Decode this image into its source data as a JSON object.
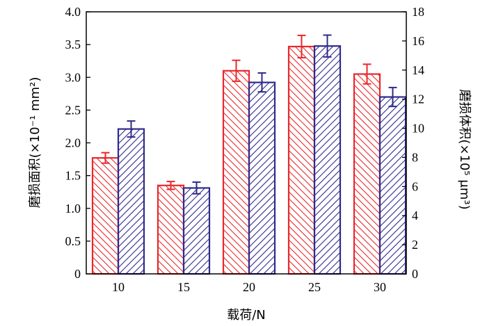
{
  "chart_data": {
    "type": "bar",
    "xlabel": "载荷/N",
    "ylabel_left": "磨损面积(×10⁻¹ mm²)",
    "ylabel_right": "磨损体积(×10⁵ μm³)",
    "categories": [
      "10",
      "15",
      "20",
      "25",
      "30"
    ],
    "y_left": {
      "lim": [
        0,
        4.0
      ],
      "ticks": [
        "0",
        "0.5",
        "1.0",
        "1.5",
        "2.0",
        "2.5",
        "3.0",
        "3.5",
        "4.0"
      ]
    },
    "y_right": {
      "lim": [
        0,
        18
      ],
      "ticks": [
        "0",
        "2",
        "4",
        "6",
        "8",
        "10",
        "12",
        "14",
        "16",
        "18"
      ]
    },
    "series": [
      {
        "axis": "left",
        "color": "#e8282c",
        "values": [
          1.77,
          1.35,
          3.1,
          3.47,
          3.05
        ],
        "errors": [
          0.08,
          0.06,
          0.16,
          0.17,
          0.15
        ]
      },
      {
        "axis": "right",
        "color": "#2e2a8c",
        "values": [
          9.95,
          5.9,
          13.15,
          15.65,
          12.15
        ],
        "errors": [
          0.55,
          0.4,
          0.65,
          0.75,
          0.65
        ]
      }
    ],
    "grid": false,
    "legend": "none"
  }
}
